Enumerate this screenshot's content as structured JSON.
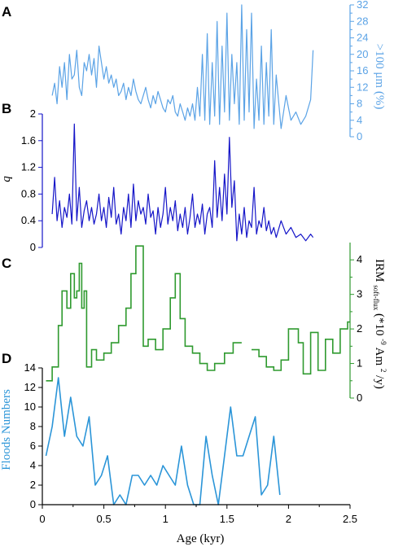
{
  "chart_data": [
    {
      "panel": "A",
      "type": "line",
      "color": "#5ba3e6",
      "ylabel": ">100 μm (%)",
      "yaxis_side": "right",
      "ylim": [
        0,
        32
      ],
      "yticks": [
        0,
        4,
        8,
        12,
        16,
        20,
        24,
        28,
        32
      ],
      "x": [
        0.08,
        0.1,
        0.12,
        0.14,
        0.16,
        0.18,
        0.2,
        0.22,
        0.24,
        0.26,
        0.28,
        0.3,
        0.32,
        0.34,
        0.36,
        0.38,
        0.4,
        0.42,
        0.44,
        0.46,
        0.48,
        0.5,
        0.52,
        0.54,
        0.56,
        0.58,
        0.6,
        0.62,
        0.64,
        0.66,
        0.68,
        0.7,
        0.72,
        0.74,
        0.76,
        0.78,
        0.8,
        0.82,
        0.84,
        0.86,
        0.88,
        0.9,
        0.92,
        0.94,
        0.96,
        0.98,
        1.0,
        1.02,
        1.04,
        1.06,
        1.08,
        1.1,
        1.12,
        1.14,
        1.16,
        1.18,
        1.2,
        1.22,
        1.24,
        1.26,
        1.28,
        1.3,
        1.32,
        1.34,
        1.36,
        1.38,
        1.4,
        1.42,
        1.44,
        1.46,
        1.48,
        1.5,
        1.52,
        1.54,
        1.56,
        1.58,
        1.6,
        1.62,
        1.64,
        1.66,
        1.68,
        1.7,
        1.72,
        1.74,
        1.76,
        1.78,
        1.8,
        1.82,
        1.84,
        1.86,
        1.88,
        1.9,
        1.94,
        1.98,
        2.02,
        2.06,
        2.1,
        2.14,
        2.18,
        2.2
      ],
      "y": [
        10,
        13,
        8,
        17,
        12,
        18,
        9,
        20,
        14,
        15,
        21,
        12,
        10,
        18,
        16,
        20,
        15,
        19,
        12,
        22,
        18,
        14,
        17,
        13,
        15,
        12,
        14,
        10,
        11,
        13,
        9,
        12,
        10,
        14,
        11,
        9,
        8,
        10,
        12,
        9,
        7,
        10,
        8,
        11,
        9,
        7,
        6,
        9,
        8,
        10,
        6,
        5,
        8,
        6,
        4,
        7,
        5,
        8,
        4,
        12,
        5,
        20,
        4,
        25,
        3,
        18,
        5,
        28,
        3,
        22,
        6,
        30,
        4,
        20,
        8,
        18,
        3,
        32,
        4,
        26,
        6,
        30,
        2,
        14,
        4,
        22,
        3,
        18,
        5,
        26,
        3,
        15,
        2,
        10,
        4,
        6,
        3,
        5,
        9,
        21
      ],
      "xlim": [
        0,
        2.5
      ]
    },
    {
      "panel": "B",
      "type": "line",
      "color": "#1515c8",
      "ylabel": "q",
      "yaxis_side": "left",
      "ylim": [
        0,
        2
      ],
      "yticks": [
        "0",
        "0.4",
        "0.8",
        "1.2",
        "1.6",
        "2"
      ],
      "x": [
        0.08,
        0.1,
        0.12,
        0.14,
        0.16,
        0.18,
        0.2,
        0.22,
        0.24,
        0.26,
        0.28,
        0.3,
        0.32,
        0.34,
        0.36,
        0.38,
        0.4,
        0.42,
        0.44,
        0.46,
        0.48,
        0.5,
        0.52,
        0.54,
        0.56,
        0.58,
        0.6,
        0.62,
        0.64,
        0.66,
        0.68,
        0.7,
        0.72,
        0.74,
        0.76,
        0.78,
        0.8,
        0.82,
        0.84,
        0.86,
        0.88,
        0.9,
        0.92,
        0.94,
        0.96,
        0.98,
        1.0,
        1.02,
        1.04,
        1.06,
        1.08,
        1.1,
        1.12,
        1.14,
        1.16,
        1.18,
        1.2,
        1.22,
        1.24,
        1.26,
        1.28,
        1.3,
        1.32,
        1.34,
        1.36,
        1.38,
        1.4,
        1.42,
        1.44,
        1.46,
        1.48,
        1.5,
        1.52,
        1.54,
        1.56,
        1.58,
        1.6,
        1.62,
        1.64,
        1.66,
        1.68,
        1.7,
        1.72,
        1.74,
        1.76,
        1.78,
        1.8,
        1.82,
        1.84,
        1.86,
        1.88,
        1.9,
        1.94,
        1.98,
        2.02,
        2.06,
        2.1,
        2.14,
        2.18,
        2.2
      ],
      "y": [
        0.5,
        1.05,
        0.4,
        0.7,
        0.3,
        0.6,
        0.45,
        0.8,
        0.35,
        1.85,
        0.4,
        0.9,
        0.3,
        0.55,
        0.7,
        0.4,
        0.6,
        0.35,
        0.5,
        0.8,
        0.4,
        0.6,
        0.3,
        0.75,
        0.45,
        0.9,
        0.35,
        0.5,
        0.2,
        0.6,
        0.4,
        0.8,
        0.3,
        0.95,
        0.4,
        0.7,
        0.5,
        0.6,
        0.35,
        0.8,
        0.45,
        0.55,
        0.2,
        0.6,
        0.3,
        0.5,
        0.9,
        0.35,
        0.6,
        0.4,
        0.7,
        0.25,
        0.5,
        0.3,
        0.6,
        0.2,
        0.45,
        0.8,
        0.3,
        0.5,
        0.35,
        0.65,
        0.2,
        0.5,
        0.6,
        0.3,
        1.3,
        0.45,
        0.9,
        0.4,
        1.1,
        0.5,
        1.65,
        0.6,
        1.0,
        0.1,
        0.5,
        0.2,
        0.6,
        0.15,
        0.4,
        0.3,
        0.9,
        0.2,
        0.4,
        0.3,
        0.6,
        0.25,
        0.4,
        0.2,
        0.3,
        0.15,
        0.4,
        0.2,
        0.3,
        0.15,
        0.2,
        0.1,
        0.2,
        0.15
      ],
      "xlim": [
        0,
        2.5
      ]
    },
    {
      "panel": "C",
      "type": "step",
      "color": "#2f9a2f",
      "ylabel": "IRM soft-flux (*10^-9 Am^2/y)",
      "ylabel_main": "IRM",
      "ylabel_sub": "soft-flux",
      "ylabel_units_pre": "(*10",
      "ylabel_exp1": "-9",
      "ylabel_units_mid": " Am",
      "ylabel_exp2": "2",
      "ylabel_units_post": "/y)",
      "yaxis_side": "right",
      "ylim": [
        0,
        4.5
      ],
      "yticks": [
        0,
        1,
        2,
        3,
        4
      ],
      "steps": [
        [
          0.03,
          0.08,
          0.5
        ],
        [
          0.08,
          0.13,
          0.9
        ],
        [
          0.13,
          0.16,
          2.1
        ],
        [
          0.16,
          0.2,
          3.1
        ],
        [
          0.2,
          0.23,
          2.6
        ],
        [
          0.23,
          0.26,
          3.6
        ],
        [
          0.26,
          0.28,
          2.9
        ],
        [
          0.28,
          0.3,
          3.1
        ],
        [
          0.3,
          0.32,
          3.9
        ],
        [
          0.32,
          0.34,
          2.6
        ],
        [
          0.34,
          0.36,
          3.1
        ],
        [
          0.36,
          0.4,
          0.9
        ],
        [
          0.4,
          0.44,
          1.4
        ],
        [
          0.44,
          0.5,
          1.1
        ],
        [
          0.5,
          0.56,
          1.3
        ],
        [
          0.56,
          0.62,
          1.6
        ],
        [
          0.62,
          0.68,
          2.1
        ],
        [
          0.68,
          0.72,
          2.6
        ],
        [
          0.72,
          0.76,
          3.6
        ],
        [
          0.76,
          0.82,
          4.4
        ],
        [
          0.82,
          0.86,
          1.5
        ],
        [
          0.86,
          0.92,
          1.7
        ],
        [
          0.92,
          0.98,
          1.4
        ],
        [
          0.98,
          1.04,
          2.0
        ],
        [
          1.04,
          1.08,
          2.9
        ],
        [
          1.08,
          1.12,
          3.6
        ],
        [
          1.12,
          1.16,
          2.3
        ],
        [
          1.16,
          1.22,
          1.5
        ],
        [
          1.22,
          1.28,
          1.3
        ],
        [
          1.28,
          1.34,
          1.0
        ],
        [
          1.34,
          1.4,
          0.8
        ],
        [
          1.4,
          1.48,
          1.0
        ],
        [
          1.48,
          1.55,
          1.3
        ],
        [
          1.55,
          1.62,
          1.6
        ]
      ],
      "steps2": [
        [
          1.7,
          1.76,
          1.4
        ],
        [
          1.76,
          1.82,
          1.2
        ],
        [
          1.82,
          1.88,
          0.9
        ],
        [
          1.88,
          1.94,
          0.8
        ],
        [
          1.94,
          2.0,
          1.1
        ],
        [
          2.0,
          2.08,
          2.0
        ],
        [
          2.08,
          2.12,
          1.6
        ],
        [
          2.12,
          2.18,
          0.7
        ],
        [
          2.18,
          2.24,
          1.9
        ],
        [
          2.24,
          2.3,
          0.8
        ],
        [
          2.3,
          2.36,
          1.7
        ],
        [
          2.36,
          2.42,
          1.3
        ],
        [
          2.42,
          2.48,
          2.0
        ],
        [
          2.48,
          2.5,
          2.2
        ]
      ],
      "xlim": [
        0,
        2.5
      ]
    },
    {
      "panel": "D",
      "type": "line",
      "color": "#2b95d8",
      "ylabel": "Floods Numbers",
      "yaxis_side": "left",
      "ylim": [
        0,
        14
      ],
      "yticks": [
        0,
        2,
        4,
        6,
        8,
        10,
        12,
        14
      ],
      "x": [
        0.03,
        0.08,
        0.13,
        0.18,
        0.23,
        0.28,
        0.33,
        0.38,
        0.43,
        0.48,
        0.53,
        0.58,
        0.63,
        0.68,
        0.73,
        0.78,
        0.83,
        0.88,
        0.93,
        0.98,
        1.03,
        1.08,
        1.13,
        1.18,
        1.23,
        1.28,
        1.33,
        1.38,
        1.43,
        1.48,
        1.53,
        1.58,
        1.63,
        1.68,
        1.73,
        1.78,
        1.83,
        1.88,
        1.93
      ],
      "y": [
        5,
        8,
        13,
        7,
        11,
        7,
        6,
        9,
        2,
        3,
        5,
        0,
        1,
        0,
        3,
        3,
        2,
        3,
        2,
        4,
        3,
        2,
        6,
        2,
        0,
        0,
        7,
        3,
        0,
        5,
        10,
        5,
        5,
        7,
        9,
        1,
        2,
        7,
        1
      ],
      "xlim": [
        0,
        2.5
      ]
    }
  ],
  "xaxis": {
    "label": "Age (kyr)",
    "ticks": [
      "0",
      "0.5",
      "1",
      "1.5",
      "2",
      "2.5"
    ],
    "values": [
      0,
      0.5,
      1,
      1.5,
      2,
      2.5
    ]
  },
  "panel_letters": [
    "A",
    "B",
    "C",
    "D"
  ]
}
